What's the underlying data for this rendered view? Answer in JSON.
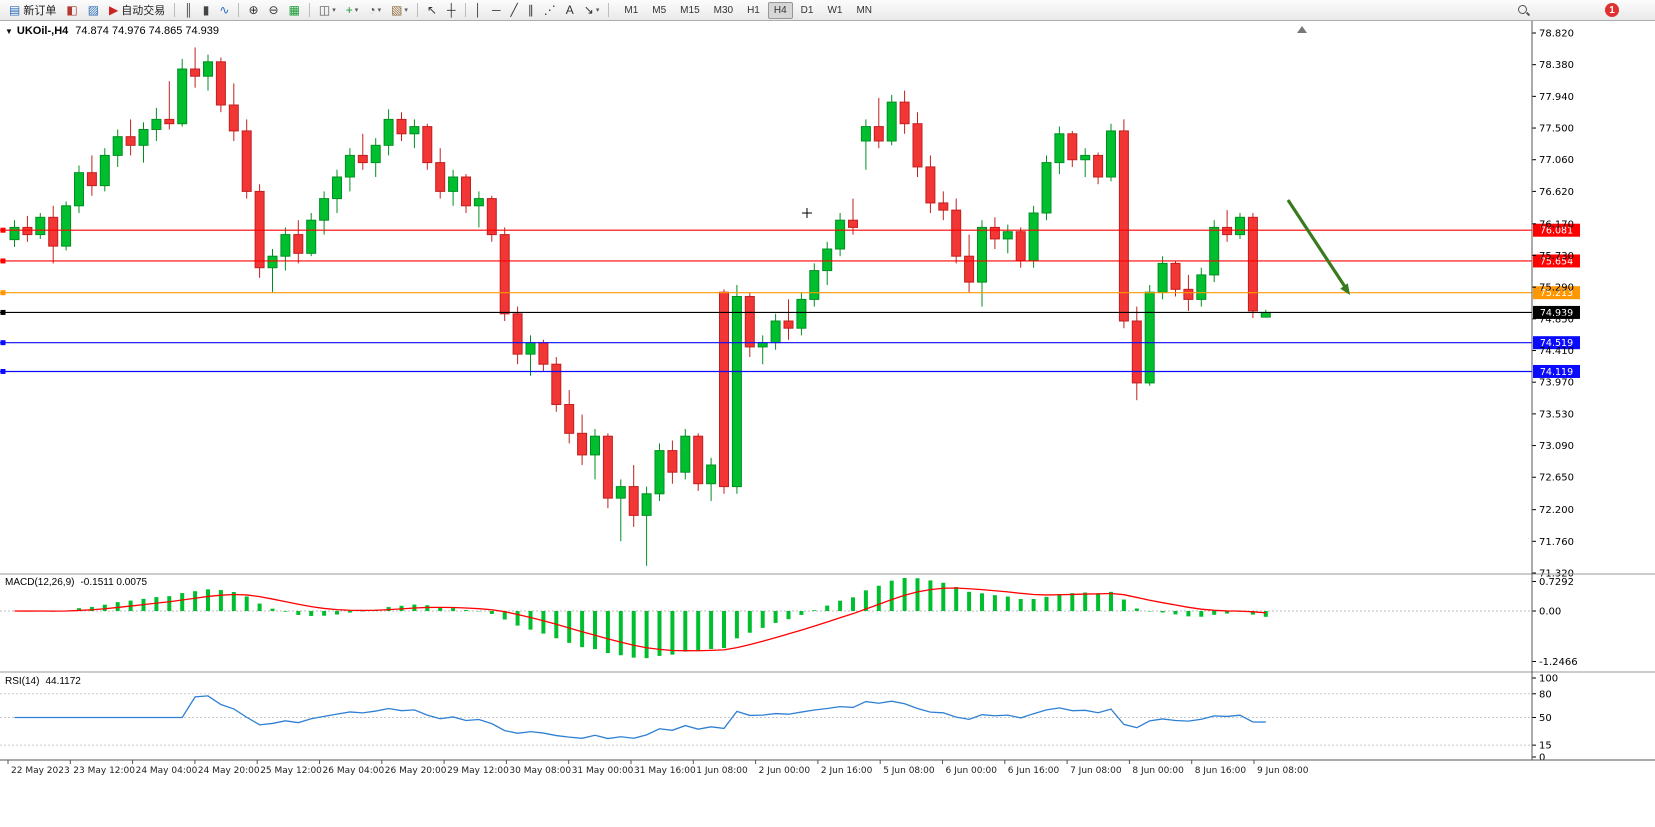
{
  "toolbar": {
    "notification_count": "1",
    "timeframes": [
      "M1",
      "M5",
      "M15",
      "M30",
      "H1",
      "H4",
      "D1",
      "W1",
      "MN"
    ],
    "active_timeframe": "H4",
    "items": [
      {
        "name": "new-order-button",
        "glyph": "▤",
        "color": "#2c6fbb",
        "label": "新订单"
      },
      {
        "name": "chart-window-button",
        "glyph": "◧",
        "color": "#b03a2e"
      },
      {
        "name": "market-watch-button",
        "glyph": "▨",
        "color": "#2c6fbb"
      },
      {
        "name": "autotrading-button",
        "glyph": "▶",
        "color": "#cc2222",
        "label": "自动交易"
      },
      {
        "type": "sep"
      },
      {
        "name": "bar-chart-button",
        "glyph": "║",
        "color": "#444444"
      },
      {
        "name": "candlestick-chart-button",
        "glyph": "▮",
        "color": "#444444"
      },
      {
        "name": "line-chart-button",
        "glyph": "∿",
        "color": "#2c6fbb"
      },
      {
        "type": "sep"
      },
      {
        "name": "zoom-in-button",
        "glyph": "⊕",
        "color": "#333333"
      },
      {
        "name": "zoom-out-button",
        "glyph": "⊖",
        "color": "#333333"
      },
      {
        "name": "tile-windows-button",
        "glyph": "▦",
        "color": "#1a9c36"
      },
      {
        "type": "sep"
      },
      {
        "name": "arrange-charts-button",
        "glyph": "◫",
        "color": "#555555",
        "dropdown": true
      },
      {
        "name": "add-indicator-button",
        "glyph": "+",
        "color": "#1a9c36",
        "dropdown": true
      },
      {
        "name": "periods-button",
        "glyph": "◔",
        "color": "#555555",
        "dropdown": true
      },
      {
        "name": "templates-button",
        "glyph": "▧",
        "color": "#8e6d3a",
        "dropdown": true
      },
      {
        "type": "sep"
      },
      {
        "name": "cursor-button",
        "glyph": "↖",
        "color": "#333333"
      },
      {
        "name": "crosshair-button",
        "glyph": "┼",
        "color": "#333333"
      },
      {
        "type": "sep"
      },
      {
        "name": "vertical-line-button",
        "glyph": "│",
        "color": "#333333"
      },
      {
        "name": "horizontal-line-button",
        "glyph": "─",
        "color": "#333333"
      },
      {
        "name": "trendline-button",
        "glyph": "╱",
        "color": "#333333"
      },
      {
        "name": "equidistant-channel-button",
        "glyph": "∥",
        "color": "#333333"
      },
      {
        "name": "fibonacci-button",
        "glyph": "⋰",
        "color": "#333333"
      },
      {
        "name": "text-button",
        "glyph": "A",
        "color": "#333333"
      },
      {
        "name": "arrows-button",
        "glyph": "↘",
        "color": "#333333",
        "dropdown": true
      },
      {
        "type": "sep"
      }
    ]
  },
  "chart": {
    "collapse_icon": "▼",
    "title_text": "UKOil-,H4",
    "ohlc_text": "74.874 74.976 74.865 74.939"
  },
  "colors": {
    "up": "#00bf2e",
    "up_border": "#008f22",
    "down": "#f23535",
    "down_border": "#c31f1f",
    "axis_text": "#000000",
    "background": "#ffffff"
  },
  "chart_data": [
    {
      "type": "candlestick",
      "title": "UKOil-,H4",
      "current_ohlc": {
        "open": 74.874,
        "high": 74.976,
        "low": 74.865,
        "close": 74.939
      },
      "ylim": [
        71.32,
        78.82
      ],
      "y_ticks": [
        "78.820",
        "78.380",
        "77.940",
        "77.500",
        "77.060",
        "76.620",
        "76.170",
        "75.730",
        "75.290",
        "74.850",
        "74.410",
        "73.970",
        "73.530",
        "73.090",
        "72.650",
        "72.200",
        "71.760",
        "71.320"
      ],
      "x_labels": [
        "22 May 2023",
        "23 May 12:00",
        "24 May 04:00",
        "24 May 20:00",
        "25 May 12:00",
        "26 May 04:00",
        "26 May 20:00",
        "29 May 12:00",
        "30 May 08:00",
        "31 May 00:00",
        "31 May 16:00",
        "1 Jun 08:00",
        "2 Jun 00:00",
        "2 Jun 16:00",
        "5 Jun 08:00",
        "6 Jun 00:00",
        "6 Jun 16:00",
        "7 Jun 08:00",
        "8 Jun 00:00",
        "8 Jun 16:00",
        "9 Jun 08:00"
      ],
      "hlines": [
        {
          "name": "resistance-line-1",
          "price": "76.081",
          "value": 76.081,
          "color": "#ff0000"
        },
        {
          "name": "resistance-line-2",
          "price": "75.654",
          "value": 75.654,
          "color": "#ff0000"
        },
        {
          "name": "pivot-line",
          "price": "75.213",
          "value": 75.213,
          "color": "#ff9800"
        },
        {
          "name": "bid-price-line",
          "price": "74.939",
          "value": 74.939,
          "color": "#000000"
        },
        {
          "name": "support-line-1",
          "price": "74.519",
          "value": 74.519,
          "color": "#0a0aff"
        },
        {
          "name": "support-line-2",
          "price": "74.119",
          "value": 74.119,
          "color": "#0a0aff"
        }
      ],
      "annotation_arrow": {
        "color": "#3a7a1e"
      },
      "candles": [
        [
          75.95,
          76.22,
          75.85,
          76.12
        ],
        [
          76.12,
          76.28,
          75.92,
          76.02
        ],
        [
          76.02,
          76.32,
          75.96,
          76.26
        ],
        [
          76.26,
          76.42,
          75.62,
          75.86
        ],
        [
          75.86,
          76.48,
          75.8,
          76.42
        ],
        [
          76.42,
          76.98,
          76.32,
          76.88
        ],
        [
          76.88,
          77.12,
          76.56,
          76.7
        ],
        [
          76.7,
          77.22,
          76.62,
          77.12
        ],
        [
          77.12,
          77.48,
          76.96,
          77.38
        ],
        [
          77.38,
          77.62,
          77.12,
          77.26
        ],
        [
          77.26,
          77.58,
          77.02,
          77.48
        ],
        [
          77.48,
          77.78,
          77.32,
          77.62
        ],
        [
          77.62,
          78.15,
          77.48,
          77.56
        ],
        [
          77.56,
          78.46,
          77.52,
          78.32
        ],
        [
          78.32,
          78.62,
          78.06,
          78.22
        ],
        [
          78.22,
          78.52,
          78.02,
          78.42
        ],
        [
          78.42,
          78.48,
          77.72,
          77.82
        ],
        [
          77.82,
          78.12,
          77.32,
          77.46
        ],
        [
          77.46,
          77.62,
          76.52,
          76.62
        ],
        [
          76.62,
          76.72,
          75.42,
          75.56
        ],
        [
          75.56,
          75.82,
          75.22,
          75.72
        ],
        [
          75.72,
          76.12,
          75.52,
          76.02
        ],
        [
          76.02,
          76.22,
          75.62,
          75.76
        ],
        [
          75.76,
          76.32,
          75.72,
          76.22
        ],
        [
          76.22,
          76.62,
          76.02,
          76.52
        ],
        [
          76.52,
          76.92,
          76.32,
          76.82
        ],
        [
          76.82,
          77.22,
          76.62,
          77.12
        ],
        [
          77.12,
          77.42,
          76.92,
          77.02
        ],
        [
          77.02,
          77.36,
          76.82,
          77.26
        ],
        [
          77.26,
          77.76,
          77.12,
          77.62
        ],
        [
          77.62,
          77.72,
          77.32,
          77.42
        ],
        [
          77.42,
          77.62,
          77.22,
          77.52
        ],
        [
          77.52,
          77.56,
          76.92,
          77.02
        ],
        [
          77.02,
          77.22,
          76.52,
          76.62
        ],
        [
          76.62,
          76.92,
          76.42,
          76.82
        ],
        [
          76.82,
          76.86,
          76.32,
          76.42
        ],
        [
          76.42,
          76.62,
          76.12,
          76.52
        ],
        [
          76.52,
          76.56,
          75.92,
          76.02
        ],
        [
          76.02,
          76.12,
          74.82,
          74.92
        ],
        [
          74.92,
          75.02,
          74.22,
          74.36
        ],
        [
          74.36,
          74.62,
          74.06,
          74.52
        ],
        [
          74.52,
          74.56,
          74.12,
          74.22
        ],
        [
          74.22,
          74.32,
          73.56,
          73.66
        ],
        [
          73.66,
          73.86,
          73.12,
          73.26
        ],
        [
          73.26,
          73.52,
          72.82,
          72.96
        ],
        [
          72.96,
          73.32,
          72.62,
          73.22
        ],
        [
          73.22,
          73.26,
          72.22,
          72.36
        ],
        [
          72.36,
          72.62,
          71.76,
          72.52
        ],
        [
          72.52,
          72.82,
          71.96,
          72.12
        ],
        [
          72.12,
          72.52,
          71.42,
          72.42
        ],
        [
          72.42,
          73.12,
          72.32,
          73.02
        ],
        [
          73.02,
          73.16,
          72.56,
          72.72
        ],
        [
          72.72,
          73.32,
          72.62,
          73.22
        ],
        [
          73.22,
          73.26,
          72.46,
          72.56
        ],
        [
          72.56,
          72.92,
          72.32,
          72.82
        ],
        [
          75.22,
          75.26,
          72.42,
          72.52
        ],
        [
          72.52,
          75.32,
          72.42,
          75.16
        ],
        [
          75.16,
          75.22,
          74.32,
          74.46
        ],
        [
          74.46,
          74.62,
          74.22,
          74.52
        ],
        [
          74.52,
          74.92,
          74.42,
          74.82
        ],
        [
          74.82,
          75.12,
          74.56,
          74.72
        ],
        [
          74.72,
          75.22,
          74.62,
          75.12
        ],
        [
          75.12,
          75.62,
          75.02,
          75.52
        ],
        [
          75.52,
          75.92,
          75.32,
          75.82
        ],
        [
          75.82,
          76.32,
          75.72,
          76.22
        ],
        [
          76.22,
          76.52,
          76.02,
          76.12
        ],
        [
          77.32,
          77.62,
          76.92,
          77.52
        ],
        [
          77.52,
          77.92,
          77.22,
          77.32
        ],
        [
          77.32,
          77.96,
          77.26,
          77.86
        ],
        [
          77.86,
          78.02,
          77.42,
          77.56
        ],
        [
          77.56,
          77.72,
          76.82,
          76.96
        ],
        [
          76.96,
          77.12,
          76.32,
          76.46
        ],
        [
          76.46,
          76.62,
          76.22,
          76.36
        ],
        [
          76.36,
          76.52,
          75.62,
          75.72
        ],
        [
          75.72,
          76.02,
          75.22,
          75.36
        ],
        [
          75.36,
          76.22,
          75.02,
          76.12
        ],
        [
          76.12,
          76.26,
          75.82,
          75.96
        ],
        [
          75.96,
          76.16,
          75.76,
          76.06
        ],
        [
          76.06,
          76.12,
          75.56,
          75.66
        ],
        [
          75.66,
          76.42,
          75.56,
          76.32
        ],
        [
          76.32,
          77.12,
          76.22,
          77.02
        ],
        [
          77.02,
          77.52,
          76.86,
          77.42
        ],
        [
          77.42,
          77.46,
          76.96,
          77.06
        ],
        [
          77.06,
          77.22,
          76.82,
          77.12
        ],
        [
          77.12,
          77.16,
          76.72,
          76.82
        ],
        [
          76.82,
          77.56,
          76.76,
          77.46
        ],
        [
          77.46,
          77.62,
          74.72,
          74.82
        ],
        [
          74.82,
          75.02,
          73.72,
          73.96
        ],
        [
          73.96,
          75.32,
          73.92,
          75.22
        ],
        [
          75.22,
          75.72,
          75.12,
          75.62
        ],
        [
          75.62,
          75.66,
          75.16,
          75.26
        ],
        [
          75.26,
          75.46,
          74.96,
          75.12
        ],
        [
          75.12,
          75.56,
          75.02,
          75.46
        ],
        [
          75.46,
          76.22,
          75.36,
          76.12
        ],
        [
          76.12,
          76.36,
          75.92,
          76.02
        ],
        [
          76.02,
          76.32,
          75.96,
          76.26
        ],
        [
          76.26,
          76.32,
          74.86,
          74.96
        ],
        [
          74.874,
          74.976,
          74.865,
          74.939
        ]
      ]
    },
    {
      "type": "macd",
      "label": "MACD(12,26,9)",
      "values_text": "-0.1511 0.0075",
      "value": -0.1511,
      "signal_value": 0.0075,
      "params": [
        12,
        26,
        9
      ],
      "y_ticks": [
        "0.7292",
        "0.00",
        "-1.2466"
      ],
      "histogram_color": "#00bf2e",
      "signal_color": "#ff0000"
    },
    {
      "type": "rsi",
      "label": "RSI(14)",
      "value_text": "44.1172",
      "value": 44.1172,
      "period": 14,
      "y_ticks": [
        "100",
        "80",
        "50",
        "15",
        "0"
      ],
      "levels": [
        80,
        50,
        15
      ],
      "line_color": "#2f80d4"
    }
  ]
}
